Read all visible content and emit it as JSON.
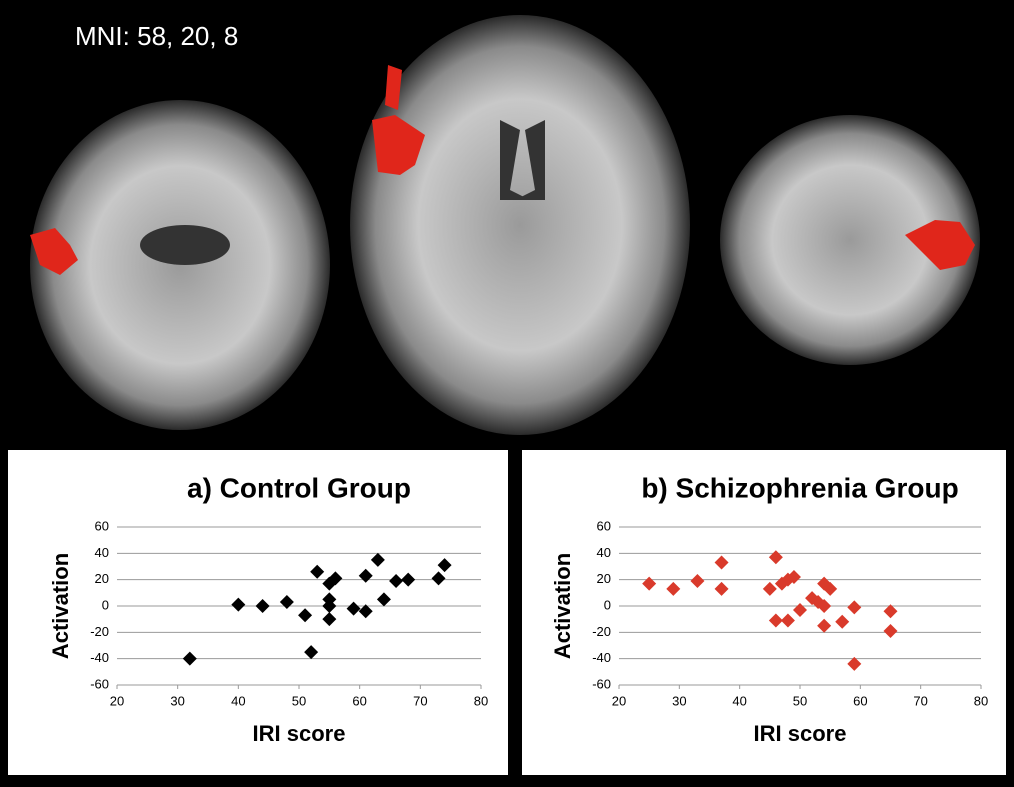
{
  "image_label": "MNI: 58, 20, 8",
  "chart_data": [
    {
      "type": "scatter",
      "title": "a) Control Group",
      "x_label": "IRI score",
      "y_label": "Activation",
      "color": "#000000",
      "grid": true,
      "xlim": [
        20,
        80
      ],
      "xticks": [
        20,
        30,
        40,
        50,
        60,
        70,
        80
      ],
      "ylim": [
        -60,
        60
      ],
      "yticks": [
        -60,
        -40,
        -20,
        0,
        20,
        40,
        60
      ],
      "x": [
        32,
        40,
        44,
        48,
        51,
        52,
        53,
        55,
        55,
        55,
        55,
        56,
        59,
        61,
        61,
        63,
        64,
        66,
        68,
        73,
        74
      ],
      "values": [
        -40,
        1,
        0,
        3,
        -7,
        -35,
        26,
        17,
        5,
        0,
        -10,
        21,
        -2,
        -4,
        23,
        35,
        5,
        19,
        20,
        21,
        31
      ]
    },
    {
      "type": "scatter",
      "title": "b) Schizophrenia Group",
      "x_label": "IRI score",
      "y_label": "Activation",
      "color": "#d93a2b",
      "grid": true,
      "xlim": [
        20,
        80
      ],
      "xticks": [
        20,
        30,
        40,
        50,
        60,
        70,
        80
      ],
      "ylim": [
        -60,
        60
      ],
      "yticks": [
        -60,
        -40,
        -20,
        0,
        20,
        40,
        60
      ],
      "x": [
        25,
        29,
        33,
        37,
        37,
        45,
        46,
        46,
        47,
        48,
        49,
        48,
        50,
        52,
        53,
        54,
        55,
        54,
        54,
        57,
        59,
        59,
        65,
        65
      ],
      "values": [
        17,
        13,
        19,
        33,
        13,
        13,
        37,
        -11,
        17,
        20,
        22,
        -11,
        -3,
        6,
        3,
        17,
        13,
        0,
        -15,
        -12,
        -1,
        -44,
        -4,
        -19
      ]
    }
  ]
}
